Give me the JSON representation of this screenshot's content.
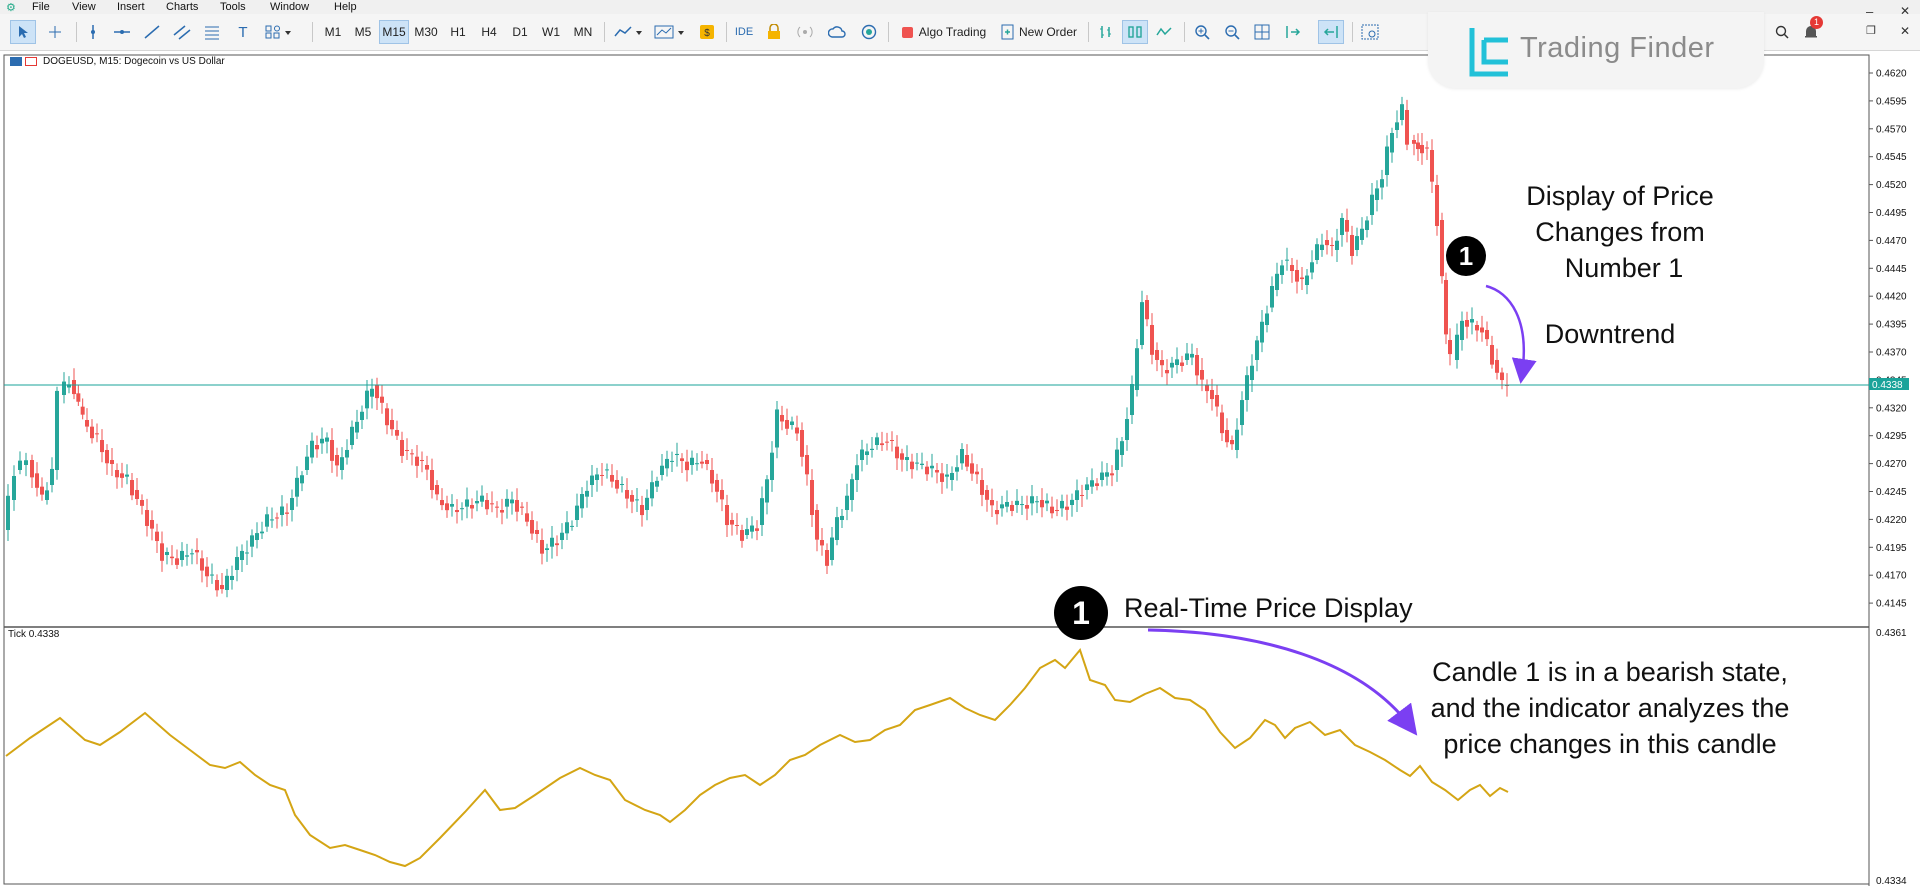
{
  "menu": {
    "items": [
      "File",
      "View",
      "Insert",
      "Charts",
      "Tools",
      "Window",
      "Help"
    ]
  },
  "toolbar": {
    "timeframes": [
      "M1",
      "M5",
      "M15",
      "M30",
      "H1",
      "H4",
      "D1",
      "W1",
      "MN"
    ],
    "selected_timeframe": "M15",
    "ide_label": "IDE",
    "algo_trading_label": "Algo Trading",
    "new_order_label": "New Order",
    "notification_count": "1"
  },
  "chart": {
    "window_title": "DOGEUSD, M15:  Dogecoin vs US Dollar",
    "current_price_label": "0.4338",
    "price_axis": [
      "0.4620",
      "0.4595",
      "0.4570",
      "0.4545",
      "0.4520",
      "0.4495",
      "0.4470",
      "0.4445",
      "0.4420",
      "0.4395",
      "0.4370",
      "0.4345",
      "0.4320",
      "0.4295",
      "0.4270",
      "0.4245",
      "0.4220",
      "0.4195",
      "0.4170",
      "0.4145"
    ],
    "colors": {
      "bull": "#26a69a",
      "bear": "#ef5350",
      "price_line": "#1aa39a"
    }
  },
  "indicator": {
    "label": "Tick 0.4338",
    "axis_top": "0.4361",
    "axis_bottom": "0.4334",
    "line_color": "#d4a514"
  },
  "logo": {
    "text": "Trading Finder"
  },
  "annotations": {
    "top_badge": "1",
    "top_text_lines": [
      "Display of Price",
      "Changes from",
      "Number 1"
    ],
    "downtrend": "Downtrend",
    "mid_badge": "1",
    "realtime": "Real-Time Price Display",
    "bottom_lines": [
      "Candle 1 is in a bearish state,",
      "and the indicator analyzes the",
      "price changes in this candle"
    ],
    "arrow_color": "#7b3ff2"
  }
}
